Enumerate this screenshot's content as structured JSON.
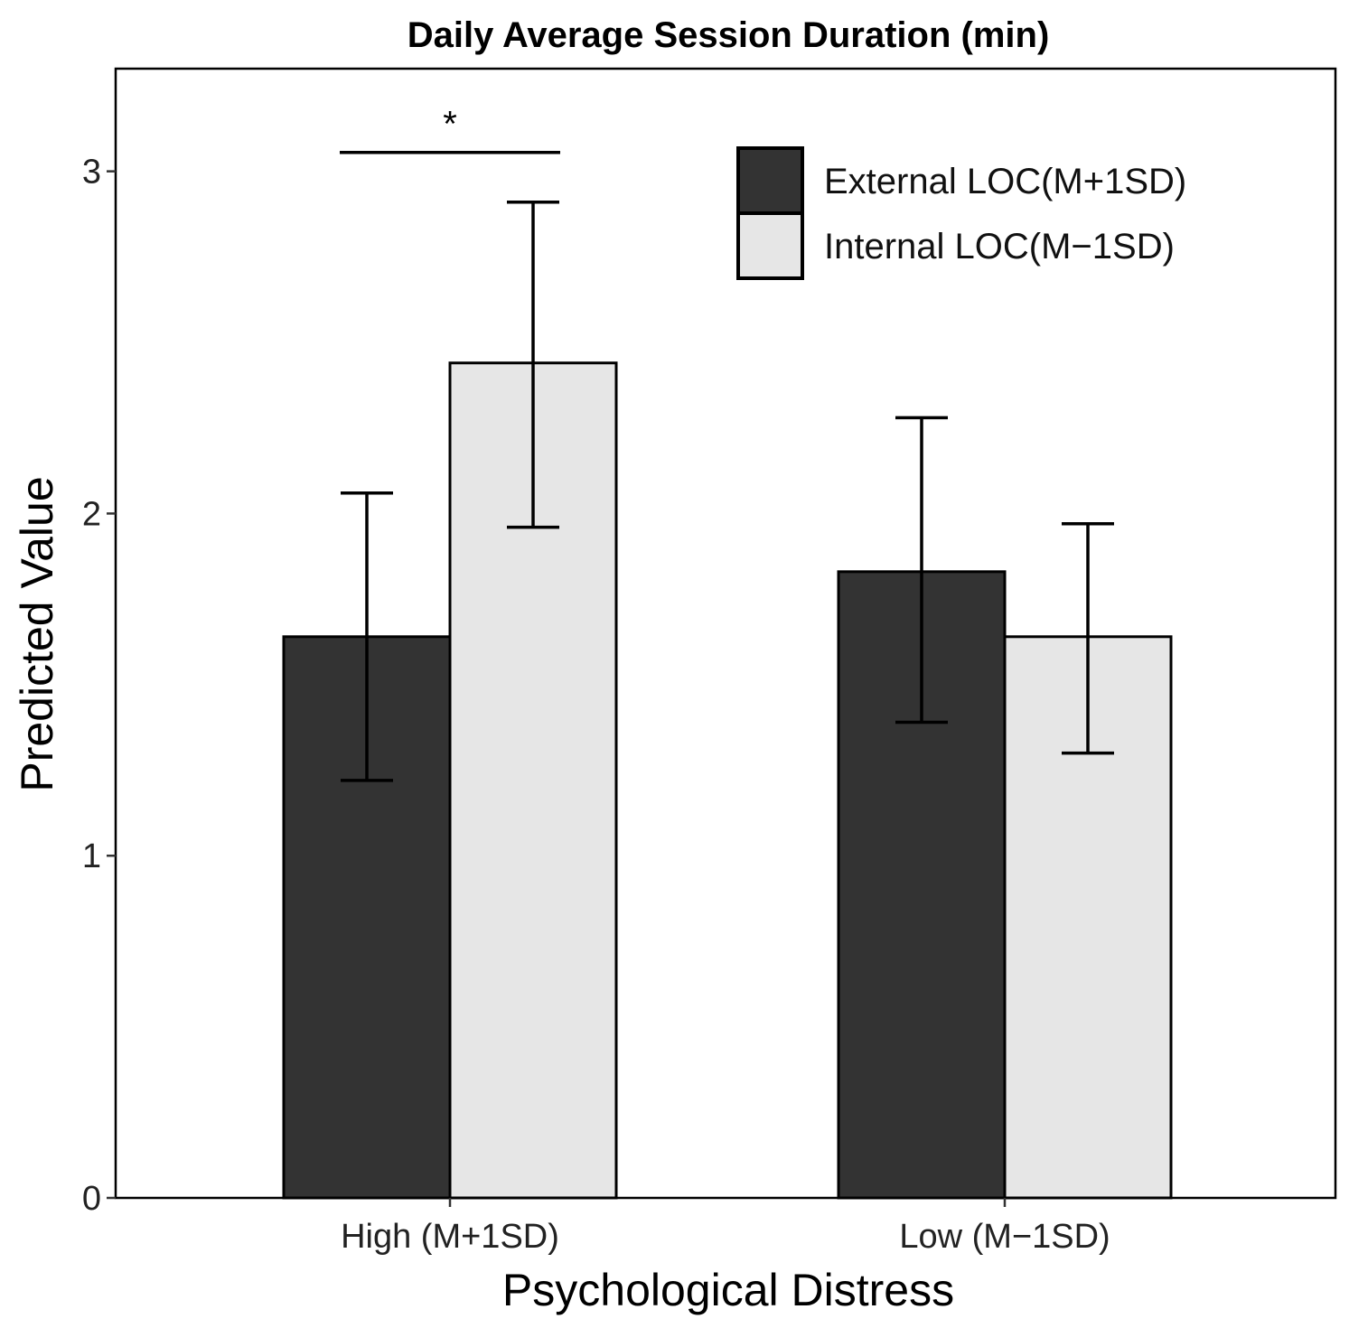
{
  "chart_data": {
    "type": "bar",
    "title": "Daily Average Session Duration (min)",
    "xlabel": "Psychological Distress",
    "ylabel": "Predicted Value",
    "categories": [
      "High (M+1SD)",
      "Low (M−1SD)"
    ],
    "ylim": [
      0,
      3.3
    ],
    "yticks": [
      "0",
      "1",
      "2",
      "3"
    ],
    "grid": false,
    "legend_position": "top-right",
    "series": [
      {
        "name": "External LOC(M+1SD)",
        "color": "#333333",
        "values": [
          1.64,
          1.83
        ],
        "error_low": [
          1.22,
          1.39
        ],
        "error_high": [
          2.06,
          2.28
        ]
      },
      {
        "name": "Internal LOC(M−1SD)",
        "color": "#e6e6e6",
        "values": [
          2.44,
          1.64
        ],
        "error_low": [
          1.96,
          1.3
        ],
        "error_high": [
          2.91,
          1.97
        ]
      }
    ],
    "annotations": [
      {
        "text": "*",
        "category": "High (M+1SD)",
        "type": "significance"
      }
    ]
  }
}
